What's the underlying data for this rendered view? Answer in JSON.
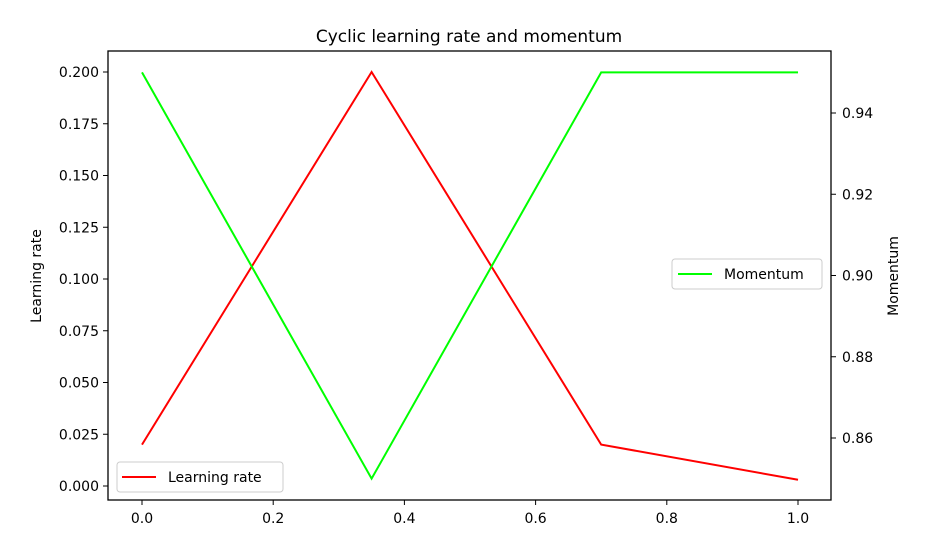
{
  "chart_data": {
    "type": "line",
    "title": "Cyclic learning rate and momentum",
    "x": [
      0.0,
      0.35,
      0.7,
      1.0
    ],
    "xlim": [
      -0.05,
      1.05
    ],
    "xticks": [
      "0.0",
      "0.2",
      "0.4",
      "0.6",
      "0.8",
      "1.0"
    ],
    "left_axis": {
      "ylabel": "Learning rate",
      "ylim": [
        -0.007,
        0.207
      ],
      "ticks": [
        "0.000",
        "0.025",
        "0.050",
        "0.075",
        "0.100",
        "0.125",
        "0.150",
        "0.175",
        "0.200"
      ]
    },
    "right_axis": {
      "ylabel": "Momentum",
      "ylim": [
        0.845,
        0.955
      ],
      "ticks": [
        "0.86",
        "0.88",
        "0.90",
        "0.92",
        "0.94"
      ]
    },
    "series": [
      {
        "name": "Learning rate",
        "axis": "left",
        "color": "#ff0000",
        "values": [
          0.02,
          0.2,
          0.02,
          0.003
        ],
        "legend": "bottom-left"
      },
      {
        "name": "Momentum",
        "axis": "right",
        "color": "#00ff00",
        "values": [
          0.95,
          0.85,
          0.95,
          0.95
        ],
        "legend": "center-right"
      }
    ],
    "grid": false
  }
}
